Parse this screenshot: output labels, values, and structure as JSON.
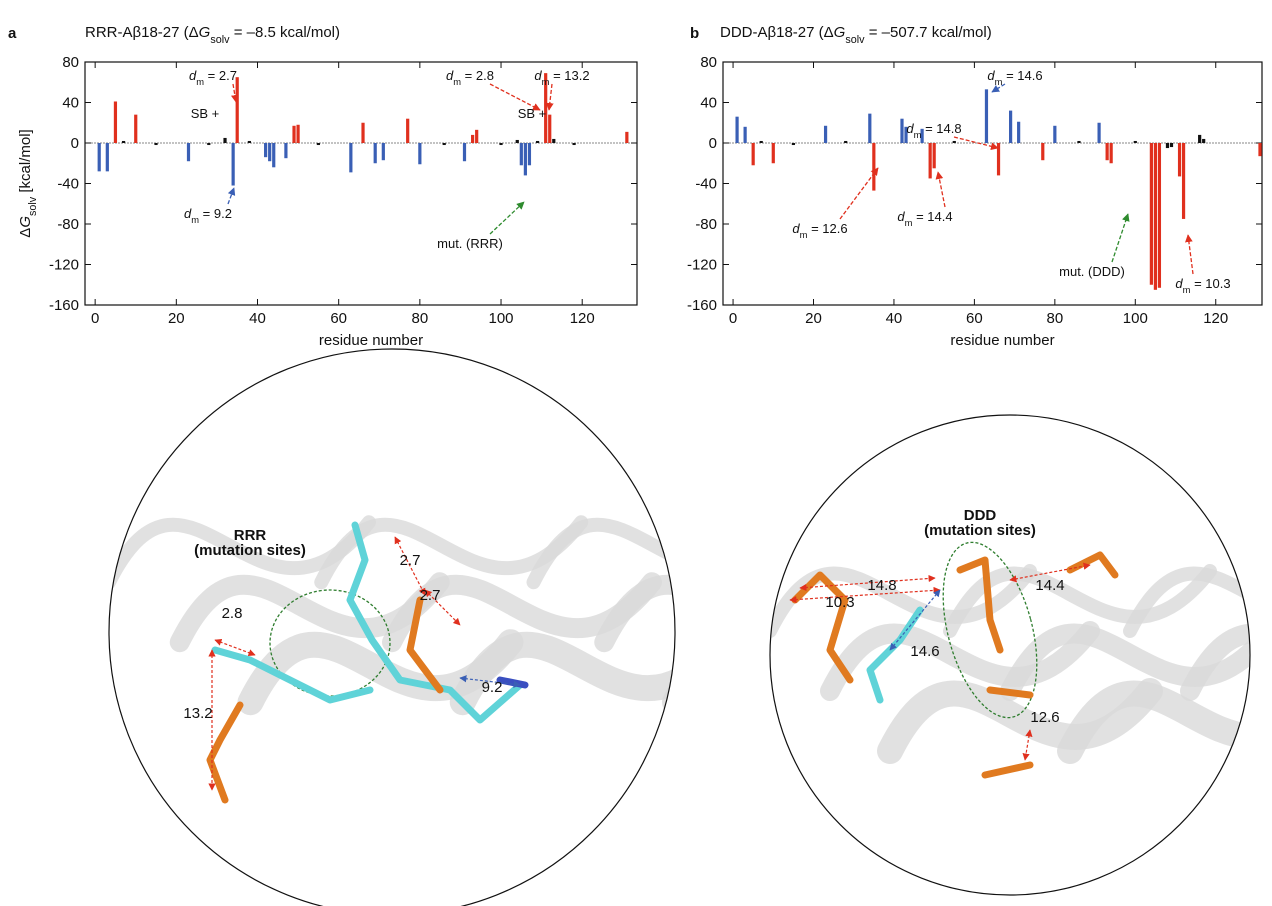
{
  "chart_data": [
    {
      "type": "bar",
      "panel": "a",
      "title": [
        {
          "text": "RRR-Aβ18-27 (Δ"
        },
        {
          "text": "G",
          "italic": true
        },
        {
          "text": "solv",
          "sub": true
        },
        {
          "text": " = –8.5 kcal/mol)"
        }
      ],
      "xlabel": [
        {
          "text": "residue number"
        }
      ],
      "ylabel": [
        {
          "text": "Δ"
        },
        {
          "text": "G",
          "italic": true
        },
        {
          "text": "solv",
          "sub": true
        },
        {
          "text": " [kcal/mol]"
        }
      ],
      "x": [
        1,
        3,
        5,
        7,
        10,
        15,
        23,
        28,
        32,
        34,
        35,
        38,
        42,
        43,
        44,
        47,
        49,
        50,
        55,
        63,
        66,
        69,
        71,
        77,
        80,
        86,
        91,
        93,
        94,
        100,
        104,
        105,
        106,
        107,
        109,
        111,
        112,
        113,
        118,
        131
      ],
      "values": [
        -28,
        -28,
        41,
        2,
        28,
        -2,
        -18,
        -2,
        5,
        -42,
        65,
        2,
        -14,
        -18,
        -24,
        -15,
        17,
        18,
        -2,
        -29,
        20,
        -20,
        -17,
        24,
        -21,
        -2,
        -18,
        8,
        13,
        -2,
        3,
        -22,
        -32,
        -22,
        2,
        69,
        28,
        4,
        -2,
        11
      ],
      "colors": [
        "#3a5fb5",
        "#3a5fb5",
        "#e0301e",
        "#111111",
        "#e0301e",
        "#111111",
        "#3a5fb5",
        "#111111",
        "#111111",
        "#3a5fb5",
        "#e0301e",
        "#111111",
        "#3a5fb5",
        "#3a5fb5",
        "#3a5fb5",
        "#3a5fb5",
        "#e0301e",
        "#e0301e",
        "#111111",
        "#3a5fb5",
        "#e0301e",
        "#3a5fb5",
        "#3a5fb5",
        "#e0301e",
        "#3a5fb5",
        "#111111",
        "#3a5fb5",
        "#e0301e",
        "#e0301e",
        "#111111",
        "#111111",
        "#3a5fb5",
        "#3a5fb5",
        "#3a5fb5",
        "#111111",
        "#e0301e",
        "#e0301e",
        "#111111",
        "#111111",
        "#e0301e"
      ],
      "xlim": [
        -2.5,
        133.5
      ],
      "xticks": [
        0,
        20,
        40,
        60,
        80,
        100,
        120
      ],
      "ylim": [
        -160,
        80
      ],
      "yticks": [
        -160,
        -120,
        -80,
        -40,
        0,
        40,
        80
      ],
      "annotations": [
        {
          "parts": [
            {
              "text": "d",
              "italic": true
            },
            {
              "text": "m",
              "sub": true
            },
            {
              "text": " = 2.7"
            }
          ],
          "color": "#e0301e"
        },
        {
          "parts": [
            {
              "text": "SB +"
            }
          ],
          "color": "#2e8b2e"
        },
        {
          "parts": [
            {
              "text": "d",
              "italic": true
            },
            {
              "text": "m",
              "sub": true
            },
            {
              "text": " = 9.2"
            }
          ],
          "color": "#3a5fb5"
        },
        {
          "parts": [
            {
              "text": "d",
              "italic": true
            },
            {
              "text": "m",
              "sub": true
            },
            {
              "text": " = 2.8"
            }
          ],
          "color": "#e0301e"
        },
        {
          "parts": [
            {
              "text": "d",
              "italic": true
            },
            {
              "text": "m",
              "sub": true
            },
            {
              "text": " = 13.2"
            }
          ],
          "color": "#e0301e"
        },
        {
          "parts": [
            {
              "text": "SB +"
            }
          ],
          "color": "#2e8b2e"
        },
        {
          "parts": [
            {
              "text": "mut. (RRR)"
            }
          ],
          "color": "#2e8b2e"
        }
      ],
      "image": {
        "title": "RRR",
        "subtitle": "(mutation sites)",
        "distances": [
          {
            "text": "2.7",
            "color": "#e0301e"
          },
          {
            "text": "2.7",
            "color": "#e0301e"
          },
          {
            "text": "2.8",
            "color": "#e0301e"
          },
          {
            "text": "9.2",
            "color": "#3a5fb5"
          },
          {
            "text": "13.2",
            "color": "#e0301e"
          }
        ]
      }
    },
    {
      "type": "bar",
      "panel": "b",
      "title": [
        {
          "text": "DDD-Aβ18-27 (Δ"
        },
        {
          "text": "G",
          "italic": true
        },
        {
          "text": "solv",
          "sub": true
        },
        {
          "text": " = –507.7 kcal/mol)"
        }
      ],
      "xlabel": [
        {
          "text": "residue number"
        }
      ],
      "x": [
        1,
        3,
        5,
        7,
        10,
        15,
        23,
        28,
        34,
        35,
        42,
        43,
        47,
        49,
        50,
        55,
        63,
        66,
        69,
        71,
        77,
        80,
        86,
        91,
        93,
        94,
        100,
        104,
        105,
        106,
        108,
        109,
        111,
        112,
        116,
        117,
        131
      ],
      "values": [
        26,
        16,
        -22,
        2,
        -20,
        -2,
        17,
        2,
        29,
        -47,
        24,
        16,
        14,
        -35,
        -25,
        2,
        53,
        -32,
        32,
        21,
        -17,
        17,
        2,
        20,
        -17,
        -20,
        2,
        -140,
        -145,
        -143,
        -5,
        -4,
        -33,
        -75,
        8,
        4,
        -13
      ],
      "colors": [
        "#3a5fb5",
        "#3a5fb5",
        "#e0301e",
        "#111111",
        "#e0301e",
        "#111111",
        "#3a5fb5",
        "#111111",
        "#3a5fb5",
        "#e0301e",
        "#3a5fb5",
        "#3a5fb5",
        "#3a5fb5",
        "#e0301e",
        "#e0301e",
        "#111111",
        "#3a5fb5",
        "#e0301e",
        "#3a5fb5",
        "#3a5fb5",
        "#e0301e",
        "#3a5fb5",
        "#111111",
        "#3a5fb5",
        "#e0301e",
        "#e0301e",
        "#111111",
        "#e0301e",
        "#e0301e",
        "#e0301e",
        "#111111",
        "#111111",
        "#e0301e",
        "#e0301e",
        "#111111",
        "#111111",
        "#e0301e"
      ],
      "xlim": [
        -2.5,
        131.5
      ],
      "xticks": [
        0,
        20,
        40,
        60,
        80,
        100,
        120
      ],
      "ylim": [
        -160,
        80
      ],
      "yticks": [
        -160,
        -120,
        -80,
        -40,
        0,
        40,
        80
      ],
      "annotations": [
        {
          "parts": [
            {
              "text": "d",
              "italic": true
            },
            {
              "text": "m",
              "sub": true
            },
            {
              "text": " = 14.6"
            }
          ],
          "color": "#3a5fb5"
        },
        {
          "parts": [
            {
              "text": "d",
              "italic": true
            },
            {
              "text": "m",
              "sub": true
            },
            {
              "text": " = 14.8"
            }
          ],
          "color": "#e0301e"
        },
        {
          "parts": [
            {
              "text": "d",
              "italic": true
            },
            {
              "text": "m",
              "sub": true
            },
            {
              "text": " = 12.6"
            }
          ],
          "color": "#e0301e"
        },
        {
          "parts": [
            {
              "text": "d",
              "italic": true
            },
            {
              "text": "m",
              "sub": true
            },
            {
              "text": " = 14.4"
            }
          ],
          "color": "#e0301e"
        },
        {
          "parts": [
            {
              "text": "mut. (DDD)"
            }
          ],
          "color": "#2e8b2e"
        },
        {
          "parts": [
            {
              "text": "d",
              "italic": true
            },
            {
              "text": "m",
              "sub": true
            },
            {
              "text": " = 10.3"
            }
          ],
          "color": "#e0301e"
        }
      ],
      "image": {
        "title": "DDD",
        "subtitle": "(mutation sites)",
        "distances": [
          {
            "text": "14.8",
            "color": "#e0301e"
          },
          {
            "text": "10.3",
            "color": "#e0301e"
          },
          {
            "text": "14.6",
            "color": "#3a5fb5"
          },
          {
            "text": "14.4",
            "color": "#e0301e"
          },
          {
            "text": "12.6",
            "color": "#e0301e"
          }
        ]
      }
    }
  ]
}
